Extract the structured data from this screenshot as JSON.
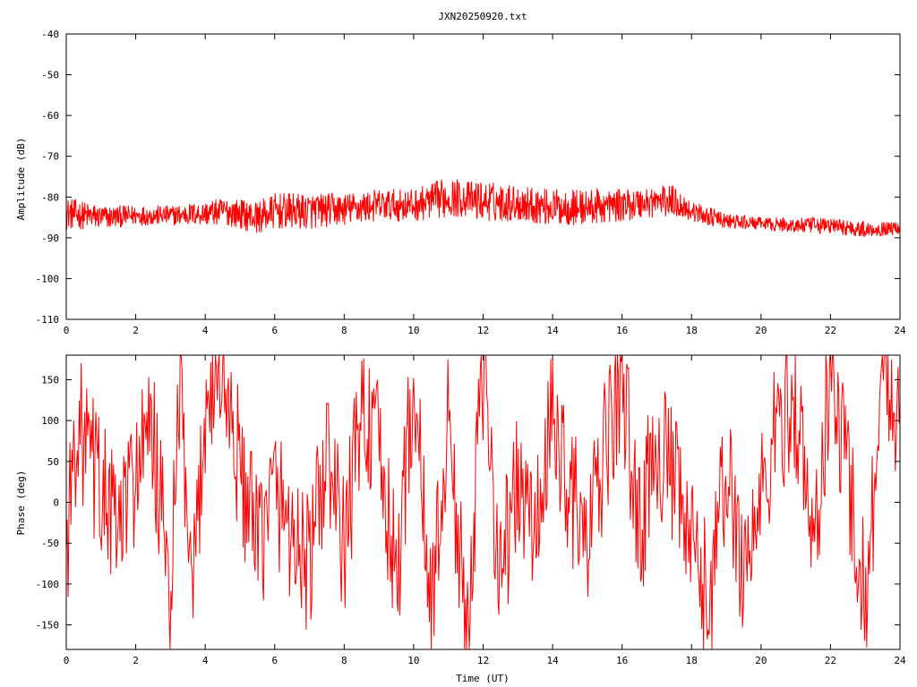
{
  "chart_data": [
    {
      "type": "line",
      "title": "JXN20250920.txt",
      "xlabel": "",
      "ylabel": "Amplitude (dB)",
      "xlim": [
        0,
        24
      ],
      "ylim": [
        -110,
        -40
      ],
      "x_ticks": [
        "0",
        "2",
        "4",
        "6",
        "8",
        "10",
        "12",
        "14",
        "16",
        "18",
        "20",
        "22",
        "24"
      ],
      "y_ticks": [
        "-40",
        "-50",
        "-60",
        "-70",
        "-80",
        "-90",
        "-100",
        "-110"
      ],
      "grid": false,
      "color": "#ff0000",
      "series": [
        {
          "envelope_x": [
            0,
            1,
            2,
            3,
            4,
            4.6,
            5.5,
            6,
            7,
            8,
            9,
            10,
            11,
            11.5,
            12,
            13,
            14,
            15,
            16,
            17,
            17.5,
            18,
            19,
            20,
            21,
            22,
            23,
            24
          ],
          "upper": [
            -80,
            -82,
            -82,
            -82,
            -81,
            -80,
            -81,
            -79,
            -79,
            -79,
            -78,
            -78,
            -75,
            -76,
            -76,
            -77,
            -78,
            -78,
            -78,
            -77,
            -77,
            -81,
            -84,
            -85,
            -85,
            -85,
            -86,
            -86
          ],
          "lower": [
            -88,
            -88,
            -87,
            -87,
            -87,
            -87,
            -89,
            -88,
            -88,
            -87,
            -86,
            -86,
            -85,
            -85,
            -86,
            -86,
            -87,
            -87,
            -86,
            -85,
            -85,
            -86,
            -88,
            -88,
            -89,
            -89,
            -90,
            -89
          ]
        }
      ]
    },
    {
      "type": "line",
      "title": "",
      "xlabel": "Time (UT)",
      "ylabel": "Phase (deg)",
      "xlim": [
        0,
        24
      ],
      "ylim": [
        -180,
        180
      ],
      "x_ticks": [
        "0",
        "2",
        "4",
        "6",
        "8",
        "10",
        "12",
        "14",
        "16",
        "18",
        "20",
        "22",
        "24"
      ],
      "y_ticks": [
        "150",
        "100",
        "50",
        "0",
        "-50",
        "-100",
        "-150"
      ],
      "y_tick_values": [
        150,
        100,
        50,
        0,
        -50,
        -100,
        -150
      ],
      "grid": false,
      "color": "#ff0000",
      "series": [
        {
          "x": [
            0,
            0.3,
            0.6,
            1.0,
            1.5,
            2.0,
            2.5,
            3.0,
            3.3,
            3.6,
            4.0,
            4.5,
            5.0,
            5.5,
            6.0,
            6.5,
            7.0,
            7.5,
            8.0,
            8.5,
            9.0,
            9.5,
            10.0,
            10.5,
            11.0,
            11.5,
            12.0,
            12.5,
            13.0,
            13.5,
            14.0,
            14.5,
            15.0,
            15.5,
            16.0,
            16.5,
            17.0,
            17.5,
            18.0,
            18.5,
            19.0,
            19.5,
            20.0,
            20.5,
            21.0,
            21.5,
            22.0,
            22.5,
            23.0,
            23.5,
            24.0
          ],
          "y": [
            -60,
            100,
            60,
            20,
            -40,
            40,
            80,
            -120,
            150,
            -150,
            120,
            160,
            40,
            -60,
            20,
            -40,
            -80,
            60,
            -60,
            120,
            60,
            -100,
            150,
            -140,
            100,
            -160,
            150,
            -80,
            20,
            -40,
            100,
            20,
            -60,
            60,
            150,
            -40,
            80,
            20,
            -60,
            -120,
            40,
            -80,
            0,
            100,
            120,
            -60,
            150,
            40,
            -120,
            150,
            120
          ]
        }
      ]
    }
  ]
}
